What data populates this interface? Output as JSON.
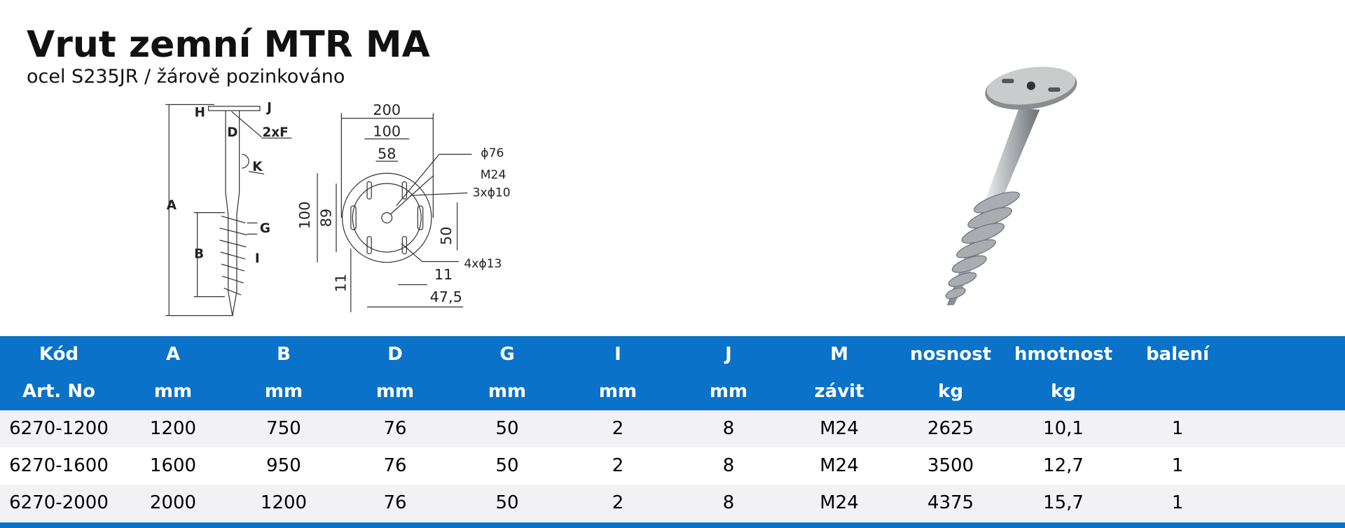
{
  "header": {
    "title": "Vrut zemní MTR MA",
    "subtitle": "ocel S235JR / žárově pozinkováno"
  },
  "diagram": {
    "side_labels": [
      "H",
      "J",
      "D",
      "2xF",
      "K",
      "A",
      "G",
      "B",
      "I"
    ],
    "top_labels": [
      "200",
      "100",
      "58",
      "ϕ76",
      "M24",
      "3xϕ10",
      "100",
      "89",
      "50",
      "4xϕ13",
      "11",
      "11",
      "47,5"
    ]
  },
  "table": {
    "columns": [
      {
        "label": "Kód",
        "unit": "Art. No"
      },
      {
        "label": "A",
        "unit": "mm"
      },
      {
        "label": "B",
        "unit": "mm"
      },
      {
        "label": "D",
        "unit": "mm"
      },
      {
        "label": "G",
        "unit": "mm"
      },
      {
        "label": "I",
        "unit": "mm"
      },
      {
        "label": "J",
        "unit": "mm"
      },
      {
        "label": "M",
        "unit": "závit"
      },
      {
        "label": "nosnost",
        "unit": "kg"
      },
      {
        "label": "hmotnost",
        "unit": "kg"
      },
      {
        "label": "balení"
      }
    ],
    "rows": [
      [
        "6270-1200",
        "1200",
        "750",
        "76",
        "50",
        "2",
        "8",
        "M24",
        "2625",
        "10,1",
        "1"
      ],
      [
        "6270-1600",
        "1600",
        "950",
        "76",
        "50",
        "2",
        "8",
        "M24",
        "3500",
        "12,7",
        "1"
      ],
      [
        "6270-2000",
        "2000",
        "1200",
        "76",
        "50",
        "2",
        "8",
        "M24",
        "4375",
        "15,7",
        "1"
      ]
    ]
  }
}
